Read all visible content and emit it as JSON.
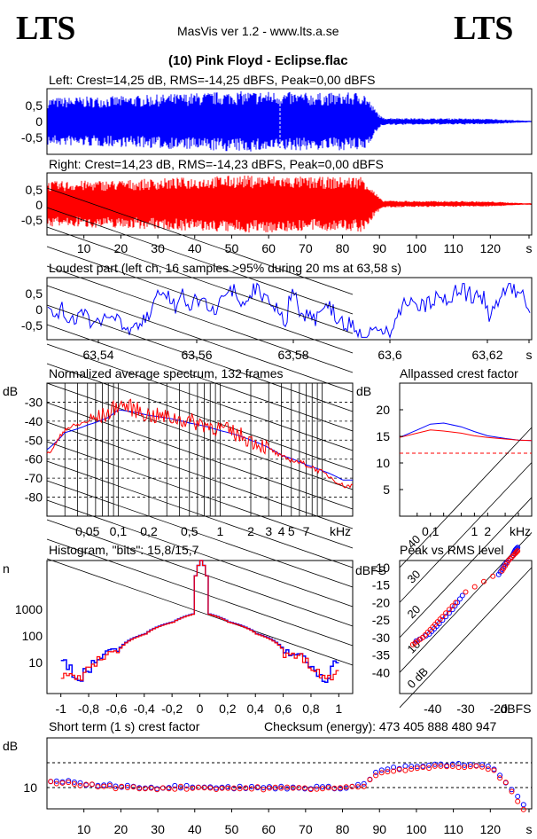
{
  "header": {
    "logo_left": "LTS",
    "logo_right": "LTS",
    "app_title": "MasVis ver 1.2 - www.lts.a.se",
    "track_title": "(10) Pink Floyd - Eclipse.flac"
  },
  "colors": {
    "left": "#0000ff",
    "right": "#ff0000",
    "grid": "#000000"
  },
  "panels": {
    "left_title": "Left: Crest=14,25 dB, RMS=-14,25 dBFS, Peak=0,00 dBFS",
    "right_title": "Right: Crest=14,23 dB, RMS=-14,23 dBFS, Peak=0,00 dBFS",
    "loudest_title": "Loudest part (left  ch, 16 samples >95% during 20 ms at 63,58 s)",
    "spectrum_title": "Normalized average spectrum, 132 frames",
    "allpass_title": "Allpassed crest factor",
    "histogram_title": "Histogram, \"bits\": 15,8/15,7",
    "peak_rms_title": "Peak vs RMS level",
    "crest_title": "Short term (1 s) crest factor",
    "checksum": "Checksum (energy):   473 405 888 480 947"
  },
  "chart_data": [
    {
      "type": "line",
      "title": "Left: Crest=14,25 dB, RMS=-14,25 dBFS, Peak=0,00 dBFS",
      "ylabel": "",
      "y_ticks": [
        "0,5",
        "0",
        "-0,5"
      ],
      "xlim": [
        0,
        130
      ],
      "ylim": [
        -1,
        1
      ],
      "envelope": {
        "x": [
          0,
          10,
          20,
          30,
          40,
          50,
          60,
          70,
          80,
          85,
          88,
          90,
          100,
          110,
          120,
          128
        ],
        "amp": [
          0.75,
          0.78,
          0.8,
          0.85,
          0.9,
          0.95,
          0.95,
          0.9,
          0.9,
          0.95,
          0.4,
          0.12,
          0.1,
          0.1,
          0.08,
          0.03
        ]
      },
      "marker_x": 63.58
    },
    {
      "type": "line",
      "title": "Right: Crest=14,23 dB, RMS=-14,23 dBFS, Peak=0,00 dBFS",
      "y_ticks": [
        "0,5",
        "0",
        "-0,5"
      ],
      "x_ticks": [
        "10",
        "20",
        "30",
        "40",
        "50",
        "60",
        "70",
        "80",
        "90",
        "100",
        "110",
        "120",
        "s"
      ],
      "xlim": [
        0,
        130
      ],
      "ylim": [
        -1,
        1
      ],
      "envelope": {
        "x": [
          0,
          10,
          20,
          30,
          40,
          50,
          60,
          70,
          80,
          85,
          88,
          90,
          100,
          110,
          120,
          128
        ],
        "amp": [
          0.75,
          0.78,
          0.8,
          0.85,
          0.9,
          0.95,
          0.95,
          0.9,
          0.9,
          0.95,
          0.4,
          0.12,
          0.1,
          0.1,
          0.08,
          0.03
        ]
      }
    },
    {
      "type": "line",
      "title": "Loudest part (left  ch, 16 samples >95% during 20 ms at 63,58 s)",
      "y_ticks": [
        "0,5",
        "0",
        "-0,5"
      ],
      "x_ticks": [
        "63,54",
        "63,56",
        "63,58",
        "63,6",
        "63,62",
        "s"
      ],
      "xlim": [
        63.533,
        63.633
      ],
      "ylim": [
        -1,
        1
      ]
    },
    {
      "type": "line",
      "title": "Normalized average spectrum, 132 frames",
      "ylabel": "dB",
      "xlabel": "kHz",
      "y_ticks": [
        "-30",
        "-40",
        "-50",
        "-60",
        "-70",
        "-80"
      ],
      "x_ticks": [
        "0,05",
        "0,1",
        "0,2",
        "0,5",
        "1",
        "2",
        "3",
        "4",
        "5",
        "7"
      ],
      "ylim": [
        -90,
        -20
      ],
      "xscale": "log",
      "series": [
        {
          "color": "blue",
          "x": [
            0.02,
            0.03,
            0.05,
            0.08,
            0.1,
            0.2,
            0.5,
            1,
            2,
            4,
            7,
            10,
            16
          ],
          "y": [
            -55,
            -46,
            -42,
            -38,
            -34,
            -37,
            -41,
            -45,
            -50,
            -58,
            -63,
            -66,
            -71
          ]
        },
        {
          "color": "red",
          "x": [
            0.02,
            0.03,
            0.05,
            0.08,
            0.1,
            0.2,
            0.5,
            1,
            2,
            4,
            7,
            10,
            16
          ],
          "y": [
            -58,
            -44,
            -40,
            -36,
            -31,
            -37,
            -40,
            -44,
            -50,
            -59,
            -63,
            -67,
            -74
          ]
        }
      ]
    },
    {
      "type": "line",
      "title": "Allpassed crest factor",
      "ylabel": "dB",
      "xlabel": "kHz",
      "y_ticks": [
        "20",
        "15",
        "10",
        "5"
      ],
      "x_ticks": [
        "0,1",
        "1",
        "2"
      ],
      "ylim": [
        0,
        25
      ],
      "xscale": "log",
      "series": [
        {
          "color": "blue",
          "x": [
            0.02,
            0.05,
            0.1,
            0.2,
            0.5,
            1,
            2,
            5,
            10,
            20
          ],
          "y": [
            14.8,
            16.2,
            17.3,
            17.5,
            16.8,
            15.9,
            15.1,
            14.6,
            14.3,
            14.2
          ]
        },
        {
          "color": "red",
          "x": [
            0.02,
            0.05,
            0.1,
            0.2,
            0.5,
            1,
            2,
            5,
            10,
            20
          ],
          "y": [
            14.8,
            15.6,
            16.2,
            16.0,
            15.6,
            15.1,
            14.8,
            14.5,
            14.3,
            14.2
          ]
        },
        {
          "color": "red-dashed",
          "x": [
            0.02,
            20
          ],
          "y": [
            14.2,
            14.2
          ]
        }
      ]
    },
    {
      "type": "line",
      "title": "Histogram, \"bits\": 15,8/15,7",
      "ylabel": "n",
      "y_ticks": [
        "1000",
        "100",
        "10"
      ],
      "x_ticks": [
        "-1",
        "-0,8",
        "-0,6",
        "-0,4",
        "-0,2",
        "0",
        "0,2",
        "0,4",
        "0,6",
        "0,8",
        "1"
      ],
      "xlim": [
        -1.1,
        1.1
      ],
      "yscale": "log",
      "series": [
        {
          "color": "blue",
          "x": [
            -1,
            -0.9,
            -0.8,
            -0.6,
            -0.4,
            -0.2,
            -0.05,
            0,
            0.05,
            0.2,
            0.4,
            0.6,
            0.8,
            0.9,
            1
          ],
          "y": [
            30,
            4,
            12,
            80,
            500,
            1700,
            4000,
            1000000,
            4000,
            1700,
            500,
            80,
            12,
            4,
            30
          ]
        },
        {
          "color": "red",
          "x": [
            -1,
            -0.9,
            -0.8,
            -0.6,
            -0.4,
            -0.2,
            -0.05,
            0,
            0.05,
            0.2,
            0.4,
            0.6,
            0.8,
            0.9,
            1
          ],
          "y": [
            8,
            3,
            10,
            70,
            480,
            1650,
            3900,
            1000000,
            3900,
            1650,
            480,
            70,
            10,
            3,
            8
          ]
        }
      ]
    },
    {
      "type": "scatter",
      "title": "Peak vs RMS level",
      "xlabel": "dBFS",
      "ylabel": "dBFS",
      "x_ticks": [
        "-40",
        "-30",
        "-20"
      ],
      "y_ticks": [
        "-10",
        "-15",
        "-20",
        "-25",
        "-30",
        "-35",
        "-40"
      ],
      "line_labels": [
        "40",
        "30",
        "20",
        "10",
        "0 dB"
      ],
      "series": [
        {
          "color": "blue",
          "x": [
            -45,
            -41,
            -38,
            -34,
            -31,
            -20,
            -18,
            -16,
            -15,
            -14
          ],
          "y": [
            -31,
            -29,
            -26,
            -22,
            -18,
            -12,
            -9,
            -7,
            -5,
            -4
          ]
        },
        {
          "color": "red",
          "x": [
            -46,
            -43,
            -40,
            -37,
            -33,
            -30,
            -19,
            -17,
            -15,
            -14
          ],
          "y": [
            -32,
            -30,
            -27,
            -24,
            -20,
            -17,
            -11,
            -8,
            -6,
            -5
          ]
        }
      ]
    },
    {
      "type": "scatter",
      "title": "Short term (1 s) crest factor",
      "ylabel": "dB",
      "y_ticks": [
        "10"
      ],
      "x_ticks": [
        "10",
        "20",
        "30",
        "40",
        "50",
        "60",
        "70",
        "80",
        "90",
        "100",
        "110",
        "120",
        "s"
      ],
      "xlim": [
        0,
        131
      ],
      "ylim": [
        5,
        25
      ],
      "series": [
        {
          "color": "blue",
          "x": [
            2,
            10,
            20,
            30,
            40,
            50,
            60,
            70,
            80,
            86,
            90,
            100,
            110,
            120,
            124,
            127,
            129
          ],
          "y": [
            13,
            12,
            11.5,
            11,
            11.5,
            11,
            11,
            11,
            11,
            12,
            16,
            17,
            17.5,
            17,
            13,
            9,
            6
          ]
        },
        {
          "color": "red",
          "x": [
            2,
            10,
            20,
            30,
            40,
            50,
            60,
            70,
            80,
            86,
            90,
            100,
            110,
            120,
            124,
            127,
            129
          ],
          "y": [
            12.5,
            11.8,
            11,
            10.8,
            11,
            10.8,
            10.8,
            10.8,
            10.8,
            11.5,
            15.5,
            16.5,
            17,
            16.5,
            12.5,
            8,
            5
          ]
        }
      ]
    }
  ]
}
